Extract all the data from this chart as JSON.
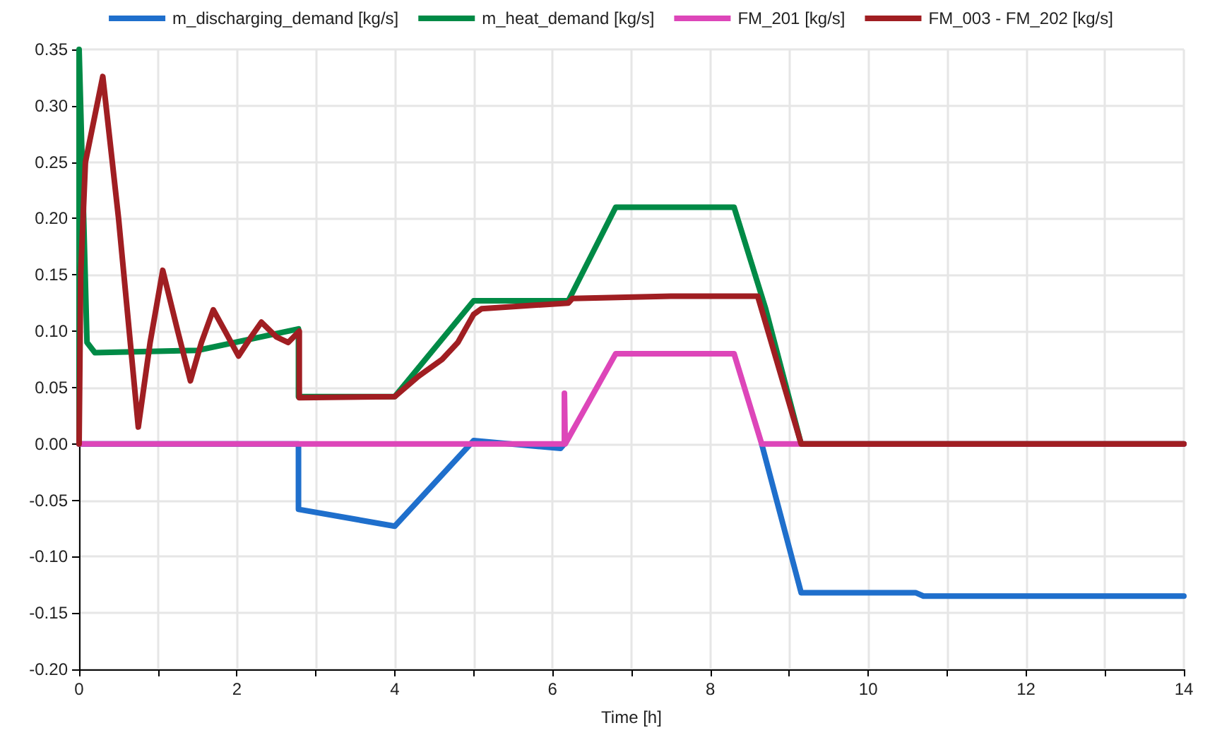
{
  "chart_data": {
    "type": "line",
    "xlabel": "Time [h]",
    "xlim": [
      0,
      14
    ],
    "ylim": [
      -0.2,
      0.35
    ],
    "xticks": [
      0,
      {
        "value": 1,
        "label": null
      },
      2,
      {
        "value": 3,
        "label": null
      },
      4,
      {
        "value": 5,
        "label": null
      },
      6,
      {
        "value": 7,
        "label": null
      },
      8,
      {
        "value": 9,
        "label": null
      },
      10,
      {
        "value": 11,
        "label": null
      },
      12,
      {
        "value": 13,
        "label": null
      },
      14
    ],
    "yticks": [
      {
        "value": -0.2,
        "label": "-0.20"
      },
      {
        "value": -0.15,
        "label": "-0.15"
      },
      {
        "value": -0.1,
        "label": "-0.10"
      },
      {
        "value": -0.05,
        "label": "-0.05"
      },
      {
        "value": 0,
        "label": "0.00"
      },
      {
        "value": 0.05,
        "label": "0.05"
      },
      {
        "value": 0.1,
        "label": "0.10"
      },
      {
        "value": 0.15,
        "label": "0.15"
      },
      {
        "value": 0.2,
        "label": "0.20"
      },
      {
        "value": 0.25,
        "label": "0.25"
      },
      {
        "value": 0.3,
        "label": "0.30"
      },
      {
        "value": 0.35,
        "label": "0.35"
      }
    ],
    "grid": true,
    "legend": "top",
    "marker": "none",
    "line_style": "solid",
    "series": [
      {
        "name": "m_discharging_demand [kg/s]",
        "color": "#1f6fcc",
        "x": [
          0,
          2.78,
          2.78,
          4,
          5,
          6.1,
          6.15,
          6.8,
          8.3,
          8.65,
          9.15,
          9.3,
          10.6,
          10.7,
          14
        ],
        "values": [
          0,
          0,
          -0.058,
          -0.073,
          0.003,
          -0.004,
          0,
          null,
          null,
          0,
          -0.132,
          -0.132,
          -0.132,
          -0.135,
          -0.135
        ]
      },
      {
        "name": "m_heat_demand [kg/s]",
        "color": "#008a46",
        "x": [
          0,
          0,
          0.1,
          0.2,
          1.5,
          2.78,
          2.78,
          4,
          5,
          6.2,
          6.8,
          8.3,
          8.7,
          9.15,
          14
        ],
        "values": [
          0,
          0.35,
          0.09,
          0.081,
          0.083,
          0.102,
          0.042,
          0.042,
          0.127,
          0.127,
          0.21,
          0.21,
          0.12,
          0,
          0
        ]
      },
      {
        "name": "FM_201 [kg/s]",
        "color": "#dd46b9",
        "x": [
          0,
          6.15,
          6.15,
          6.16,
          6.8,
          8.3,
          8.65,
          14
        ],
        "values": [
          0,
          0,
          0.045,
          0,
          0.08,
          0.08,
          0,
          0
        ]
      },
      {
        "name": "FM_003 - FM_202 [kg/s]",
        "color": "#a01e22",
        "x": [
          0,
          0.02,
          0.08,
          0.3,
          0.5,
          0.75,
          0.9,
          1.06,
          1.25,
          1.41,
          1.55,
          1.7,
          1.85,
          2.02,
          2.18,
          2.31,
          2.5,
          2.65,
          2.79,
          2.79,
          4,
          4.3,
          4.6,
          4.8,
          5.0,
          5.1,
          6.2,
          6.25,
          7.5,
          8.6,
          9.15,
          14
        ],
        "values": [
          0,
          0.15,
          0.25,
          0.326,
          0.2,
          0.015,
          0.09,
          0.154,
          0.1,
          0.056,
          0.09,
          0.119,
          0.1,
          0.078,
          0.095,
          0.108,
          0.095,
          0.09,
          0.1,
          0.041,
          0.042,
          0.06,
          0.075,
          0.09,
          0.115,
          0.12,
          0.125,
          0.129,
          0.131,
          0.131,
          0,
          0
        ]
      }
    ]
  }
}
